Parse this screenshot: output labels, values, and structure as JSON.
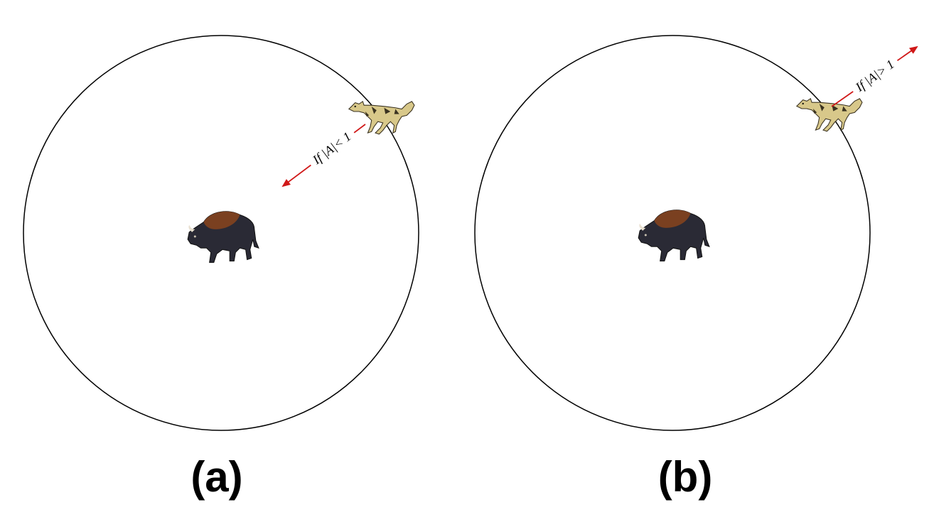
{
  "panels": [
    {
      "caption": "(a)",
      "arrow_label": "If |A|< 1",
      "arrow_direction": "inward"
    },
    {
      "caption": "(b)",
      "arrow_label": "If |A|> 1",
      "arrow_direction": "outward"
    }
  ],
  "colors": {
    "circle": "#000000",
    "arrow": "#d01818",
    "wolf_body": "#d8c88a",
    "wolf_markings": "#3a3220",
    "bison_hump": "#7a4020",
    "bison_body": "#2a2a35"
  },
  "icons": [
    "wolf-icon",
    "bison-icon"
  ]
}
